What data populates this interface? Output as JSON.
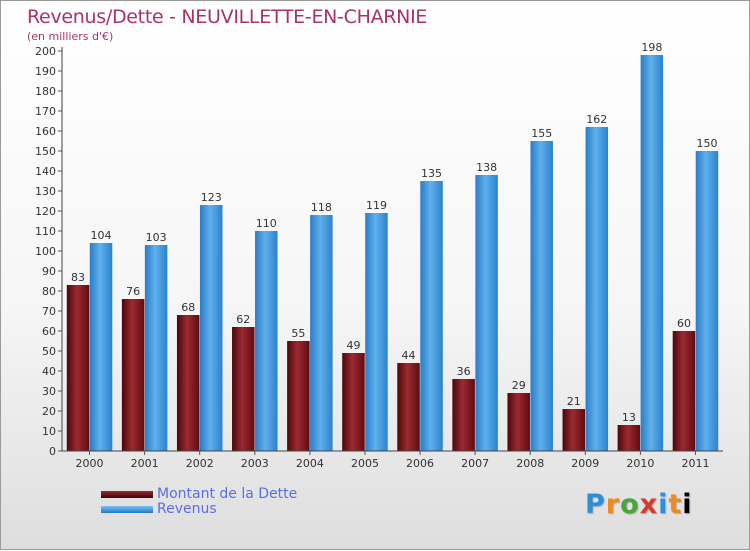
{
  "title": "Revenus/Dette - NEUVILLETTE-EN-CHARNIE",
  "subtitle": "(en milliers d'€)",
  "colors": {
    "dette": "#6e0f14",
    "revenus": "#3e98de",
    "title": "#a8326a",
    "legend_text": "#5a6ee0"
  },
  "chart_data": {
    "type": "bar",
    "categories": [
      "2000",
      "2001",
      "2002",
      "2003",
      "2004",
      "2005",
      "2006",
      "2007",
      "2008",
      "2009",
      "2010",
      "2011"
    ],
    "series": [
      {
        "name": "Montant de la Dette",
        "values": [
          83,
          76,
          68,
          62,
          55,
          49,
          44,
          36,
          29,
          21,
          13,
          60
        ]
      },
      {
        "name": "Revenus",
        "values": [
          104,
          103,
          123,
          110,
          118,
          119,
          135,
          138,
          155,
          162,
          198,
          150
        ]
      }
    ],
    "ylim": [
      0,
      200
    ],
    "ytick_step": 10,
    "grid": false,
    "legend_position": "bottom-left"
  },
  "legend": [
    {
      "label": "Montant de la Dette",
      "color": "#6e0f14"
    },
    {
      "label": "Revenus",
      "color": "#3e98de"
    }
  ],
  "logo": {
    "letters": [
      "P",
      "r",
      "o",
      "x",
      "i",
      "t",
      "i"
    ]
  }
}
